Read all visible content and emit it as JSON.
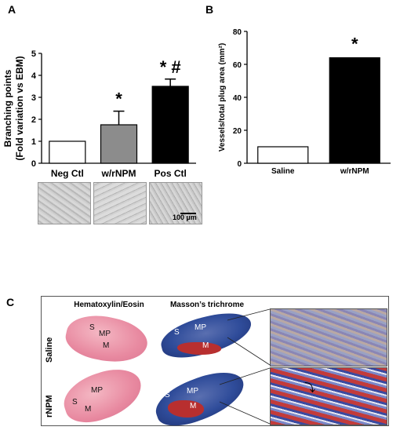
{
  "panels": {
    "a": "A",
    "b": "B",
    "c": "C"
  },
  "chart_data": [
    {
      "type": "bar",
      "categories": [
        "Neg Ctl",
        "w/rNPM",
        "Pos Ctl"
      ],
      "values": [
        1.0,
        1.75,
        3.5
      ],
      "errors": [
        0,
        0.62,
        0.33
      ],
      "colors": [
        "#ffffff",
        "#8c8c8c",
        "#000000"
      ],
      "annotations": [
        "",
        "*",
        "* #"
      ],
      "ylabel_line1": "Branching points",
      "ylabel_line2": "(Fold variation vs EBM)",
      "ylim": [
        0,
        5
      ],
      "yticks": [
        0,
        1,
        2,
        3,
        4,
        5
      ]
    },
    {
      "type": "bar",
      "categories": [
        "Saline",
        "w/rNPM"
      ],
      "values": [
        10,
        64
      ],
      "colors": [
        "#ffffff",
        "#000000"
      ],
      "annotations": [
        "",
        "*"
      ],
      "ylabel": "Vessels/total plug area (mm²)",
      "ylim": [
        0,
        80
      ],
      "yticks": [
        0,
        20,
        40,
        60,
        80
      ]
    }
  ],
  "micrographs": {
    "scalebar": "100 µm"
  },
  "histology": {
    "col1": "Hematoxylin/Eosin",
    "col2": "Masson’s trichrome",
    "row1": "Saline",
    "row2": "rNPM",
    "labels": {
      "s": "S",
      "mp": "MP",
      "m": "M"
    }
  }
}
